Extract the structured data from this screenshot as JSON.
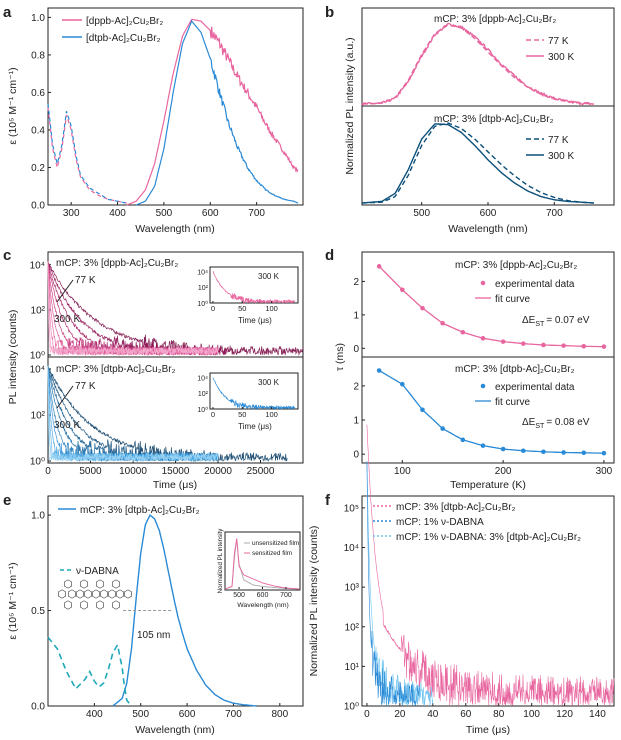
{
  "colors": {
    "pink": "#e8669f",
    "dpink": "#a3145d",
    "blue": "#2a8ad6",
    "dblue": "#0b4f7a",
    "lblue": "#70c4f0",
    "cyan": "#1fa9b8",
    "axis": "#222222"
  },
  "chart_data": [
    {
      "id": "a",
      "type": "line",
      "letter": "a",
      "xlabel": "Wavelength (nm)",
      "ylabel": "ε (10⁵ M⁻¹ cm⁻¹)",
      "xlim": [
        250,
        800
      ],
      "ylim": [
        0,
        1.05
      ],
      "xticks": [
        "300",
        "400",
        "500",
        "600",
        "700"
      ],
      "yticks": [
        "0.0",
        "0.2",
        "0.4",
        "0.6",
        "0.8",
        "1.0"
      ],
      "legend": [
        "[dppb-Ac]₂Cu₂Br₂",
        "[dtpb-Ac]₂Cu₂Br₂"
      ],
      "series": [
        {
          "name": "[dppb-Ac]₂Cu₂Br₂ abs",
          "color": "#e8669f",
          "dash": "4 3",
          "x": [
            250,
            260,
            270,
            280,
            290,
            300,
            310,
            320,
            340,
            360,
            380,
            400,
            420
          ],
          "y": [
            0.52,
            0.3,
            0.2,
            0.3,
            0.48,
            0.4,
            0.25,
            0.15,
            0.08,
            0.05,
            0.03,
            0.02,
            0.01
          ]
        },
        {
          "name": "[dtpb-Ac]₂Cu₂Br₂ abs",
          "color": "#2a8ad6",
          "dash": "4 3",
          "x": [
            250,
            260,
            270,
            280,
            290,
            300,
            310,
            320,
            340,
            360,
            380,
            400,
            420
          ],
          "y": [
            0.54,
            0.32,
            0.22,
            0.32,
            0.5,
            0.42,
            0.27,
            0.16,
            0.09,
            0.06,
            0.03,
            0.02,
            0.01
          ]
        },
        {
          "name": "[dppb-Ac]₂Cu₂Br₂ PL",
          "color": "#e8669f",
          "dash": "",
          "x": [
            420,
            440,
            460,
            480,
            500,
            520,
            540,
            560,
            580,
            600,
            620,
            640,
            660,
            680,
            700,
            720,
            740,
            760,
            780,
            790
          ],
          "y": [
            0.0,
            0.02,
            0.08,
            0.22,
            0.45,
            0.7,
            0.9,
            0.99,
            0.98,
            0.93,
            0.86,
            0.77,
            0.68,
            0.6,
            0.52,
            0.43,
            0.35,
            0.28,
            0.2,
            0.18
          ]
        },
        {
          "name": "[dtpb-Ac]₂Cu₂Br₂ PL",
          "color": "#2a8ad6",
          "dash": "",
          "x": [
            440,
            460,
            480,
            500,
            520,
            540,
            560,
            580,
            600,
            620,
            640,
            660,
            680,
            700,
            720,
            740,
            760,
            780,
            790
          ],
          "y": [
            0.0,
            0.02,
            0.1,
            0.3,
            0.6,
            0.86,
            0.98,
            0.92,
            0.78,
            0.6,
            0.43,
            0.3,
            0.2,
            0.13,
            0.08,
            0.05,
            0.03,
            0.02,
            0.01
          ]
        }
      ]
    },
    {
      "id": "b",
      "type": "line",
      "letter": "b",
      "xlabel": "Wavelength (nm)",
      "ylabel": "Normalized PL intensity (a.u.)",
      "xlim": [
        410,
        790
      ],
      "xticks": [
        "500",
        "600",
        "700"
      ],
      "top": {
        "title": "mCP: 3% [dppb-Ac]₂Cu₂Br₂",
        "legend": [
          "77 K",
          "300 K"
        ],
        "series": [
          {
            "name": "77 K",
            "color": "#e8669f",
            "dash": "5 3",
            "x": [
              410,
              440,
              460,
              480,
              500,
              520,
              540,
              560,
              580,
              600,
              620,
              640,
              660,
              680,
              700,
              720,
              740,
              760
            ],
            "y": [
              0,
              0.01,
              0.08,
              0.3,
              0.62,
              0.88,
              0.99,
              0.95,
              0.82,
              0.65,
              0.48,
              0.33,
              0.21,
              0.12,
              0.06,
              0.03,
              0.01,
              0
            ]
          },
          {
            "name": "300 K",
            "color": "#e8669f",
            "dash": "",
            "x": [
              410,
              440,
              460,
              480,
              500,
              520,
              540,
              560,
              580,
              600,
              620,
              640,
              660,
              680,
              700,
              720,
              740,
              760
            ],
            "y": [
              0,
              0.01,
              0.07,
              0.28,
              0.6,
              0.87,
              1.0,
              0.96,
              0.84,
              0.68,
              0.5,
              0.35,
              0.22,
              0.13,
              0.07,
              0.03,
              0.01,
              0
            ]
          }
        ]
      },
      "bottom": {
        "title": "mCP: 3% [dtpb-Ac]₂Cu₂Br₂",
        "legend": [
          "77 K",
          "300 K"
        ],
        "series": [
          {
            "name": "77 K",
            "color": "#0b4f7a",
            "dash": "5 3",
            "x": [
              410,
              440,
              460,
              480,
              500,
              520,
              540,
              560,
              580,
              600,
              620,
              640,
              660,
              680,
              700,
              720,
              740,
              760
            ],
            "y": [
              0,
              0.01,
              0.08,
              0.35,
              0.72,
              0.96,
              1.0,
              0.93,
              0.8,
              0.64,
              0.48,
              0.34,
              0.22,
              0.13,
              0.07,
              0.03,
              0.01,
              0
            ]
          },
          {
            "name": "300 K",
            "color": "#0b4f7a",
            "dash": "",
            "x": [
              410,
              440,
              460,
              480,
              500,
              520,
              540,
              560,
              580,
              600,
              620,
              640,
              660,
              680,
              700,
              720,
              740,
              760
            ],
            "y": [
              0,
              0.02,
              0.12,
              0.42,
              0.8,
              0.99,
              0.98,
              0.88,
              0.72,
              0.54,
              0.38,
              0.25,
              0.15,
              0.08,
              0.04,
              0.02,
              0.01,
              0
            ]
          }
        ]
      }
    },
    {
      "id": "c",
      "type": "line",
      "letter": "c",
      "xlabel": "Time (μs)",
      "ylabel": "PL intensity (counts)",
      "xlim": [
        0,
        30000
      ],
      "xticks": [
        "0",
        "5000",
        "10000",
        "15000",
        "20000",
        "25000"
      ],
      "top": {
        "title": "mCP: 3% [dppb-Ac]₂Cu₂Br₂",
        "label_hi": "77 K",
        "label_lo": "300 K",
        "decays_us": [
          5200,
          3600,
          2500,
          1700,
          1100,
          700,
          420,
          250,
          130,
          60
        ],
        "inset": {
          "label": "300 K",
          "xlabel": "Time (μs)",
          "xticks": [
            "0",
            "50",
            "100"
          ]
        }
      },
      "bottom": {
        "title": "mCP: 3% [dtpb-Ac]₂Cu₂Br₂",
        "label_hi": "77 K",
        "label_lo": "300 K",
        "decays_us": [
          4800,
          3300,
          2300,
          1600,
          1000,
          650,
          380,
          220,
          120,
          55
        ],
        "inset": {
          "label": "300 K",
          "xlabel": "Time (μs)",
          "xticks": [
            "0",
            "50",
            "100"
          ]
        }
      },
      "yticks": [
        "10⁰",
        "10²",
        "10⁴"
      ]
    },
    {
      "id": "d",
      "type": "scatter",
      "letter": "d",
      "xlabel": "Temperature (K)",
      "ylabel": "τ (ms)",
      "xlim": [
        60,
        310
      ],
      "xticks": [
        "100",
        "200",
        "300"
      ],
      "top": {
        "title": "mCP: 3% [dppb-Ac]₂Cu₂Br₂",
        "legend": [
          "experimental data",
          "fit curve"
        ],
        "delta": "ΔE",
        "delta_sub": "ST",
        "delta_val": "= 0.07 eV",
        "ylim": [
          -0.2,
          2.7
        ],
        "yticks": [
          "0",
          "1",
          "2"
        ],
        "x": [
          77,
          100,
          120,
          140,
          160,
          180,
          200,
          220,
          240,
          260,
          280,
          300
        ],
        "y": [
          2.45,
          1.75,
          1.2,
          0.75,
          0.48,
          0.3,
          0.2,
          0.14,
          0.1,
          0.08,
          0.06,
          0.05
        ]
      },
      "bottom": {
        "title": "mCP: 3% [dtpb-Ac]₂Cu₂Br₂",
        "legend": [
          "experimental data",
          "fit curve"
        ],
        "delta": "ΔE",
        "delta_sub": "ST",
        "delta_val": "= 0.08 eV",
        "ylim": [
          -0.2,
          2.7
        ],
        "yticks": [
          "0",
          "1",
          "2"
        ],
        "x": [
          77,
          100,
          120,
          140,
          160,
          180,
          200,
          220,
          240,
          260,
          280,
          300
        ],
        "y": [
          2.45,
          2.05,
          1.3,
          0.75,
          0.42,
          0.25,
          0.15,
          0.1,
          0.07,
          0.05,
          0.04,
          0.03
        ]
      }
    },
    {
      "id": "e",
      "type": "line",
      "letter": "e",
      "xlabel": "Wavelength (nm)",
      "ylabel": "ε (10⁵ M⁻¹ cm⁻¹)",
      "xlim": [
        300,
        850
      ],
      "ylim": [
        0,
        1.1
      ],
      "xticks": [
        "400",
        "500",
        "600",
        "700",
        "800"
      ],
      "yticks": [
        "0.0",
        "0.5",
        "1.0"
      ],
      "legend": [
        "mCP: 3% [dtpb-Ac]₂Cu₂Br₂",
        "ν-DABNA"
      ],
      "fwhm": "105 nm",
      "series": [
        {
          "name": "PL",
          "color": "#2a8ad6",
          "dash": "",
          "x": [
            440,
            460,
            470,
            480,
            490,
            500,
            510,
            520,
            530,
            540,
            550,
            560,
            570,
            580,
            590,
            600,
            620,
            640,
            660,
            680,
            700,
            720,
            740,
            750
          ],
          "y": [
            0.0,
            0.04,
            0.12,
            0.3,
            0.56,
            0.8,
            0.95,
            1.0,
            0.98,
            0.92,
            0.82,
            0.7,
            0.58,
            0.47,
            0.38,
            0.3,
            0.19,
            0.11,
            0.06,
            0.03,
            0.015,
            0.007,
            0.002,
            0.0
          ]
        },
        {
          "name": "ν-DABNA",
          "color": "#1fa9b8",
          "dash": "6 4",
          "x": [
            300,
            320,
            340,
            360,
            380,
            390,
            400,
            410,
            420,
            430,
            440,
            450,
            460,
            465,
            470,
            480
          ],
          "y": [
            0.36,
            0.3,
            0.18,
            0.09,
            0.14,
            0.18,
            0.13,
            0.1,
            0.12,
            0.19,
            0.28,
            0.32,
            0.2,
            0.1,
            0.03,
            0.0
          ]
        }
      ],
      "inset": {
        "ylabel": "Normalized PL intensity",
        "xlabel": "Wavelength (nm)",
        "xticks": [
          "500",
          "600",
          "700"
        ],
        "legend": [
          "unsensitized film",
          "sensitized film"
        ]
      }
    },
    {
      "id": "f",
      "type": "line",
      "letter": "f",
      "xlabel": "Time (μs)",
      "ylabel": "Normalized PL intensity (counts)",
      "xlim": [
        -3,
        150
      ],
      "ylim_log": [
        0,
        5.3
      ],
      "xticks": [
        "0",
        "20",
        "40",
        "60",
        "80",
        "100",
        "120",
        "140"
      ],
      "yticks": [
        "10⁰",
        "10¹",
        "10²",
        "10³",
        "10⁴",
        "10⁵"
      ],
      "legend": [
        "mCP: 3% [dtpb-Ac]₂Cu₂Br₂",
        "mCP: 1% ν-DABNA",
        "mCP: 1% ν-DABNA: 3% [dtpb-Ac]₂Cu₂Br₂"
      ],
      "decays_us": [
        20,
        1.5,
        3
      ]
    }
  ]
}
